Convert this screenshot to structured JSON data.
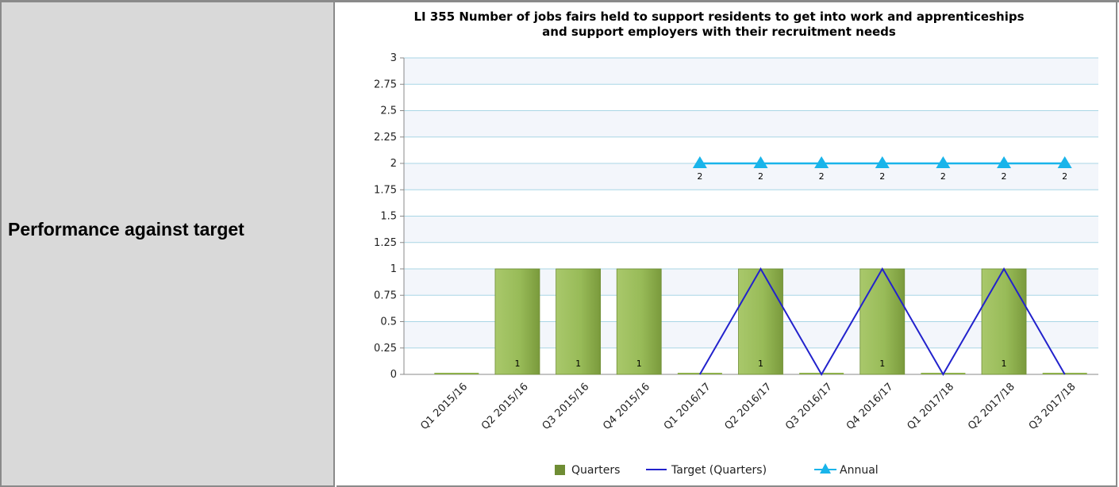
{
  "row_label": "Performance against target",
  "chart_data": {
    "type": "bar",
    "title_line1": "LI 355 Number of jobs fairs held to support residents to get into work and apprenticeships",
    "title_line2": "and support employers with their recruitment needs",
    "categories": [
      "Q1 2015/16",
      "Q2 2015/16",
      "Q3 2015/16",
      "Q4 2015/16",
      "Q1 2016/17",
      "Q2 2016/17",
      "Q3 2016/17",
      "Q4 2016/17",
      "Q1 2017/18",
      "Q2 2017/18",
      "Q3 2017/18"
    ],
    "y_ticks": [
      "0",
      "0.25",
      "0.5",
      "0.75",
      "1",
      "1.25",
      "1.5",
      "1.75",
      "2",
      "2.25",
      "2.5",
      "2.75",
      "3"
    ],
    "ylim": [
      0,
      3
    ],
    "grid": true,
    "series": [
      {
        "name": "Quarters",
        "type": "bar",
        "color": "#8db04a",
        "values": [
          0,
          1,
          1,
          1,
          0,
          1,
          0,
          1,
          0,
          1,
          0
        ],
        "labels": [
          "",
          "1",
          "1",
          "1",
          "",
          "1",
          "",
          "1",
          "",
          "1",
          ""
        ]
      },
      {
        "name": "Target (Quarters)",
        "type": "line",
        "color": "#2222cc",
        "values": [
          null,
          null,
          null,
          null,
          0,
          1,
          0,
          1,
          0,
          1,
          0
        ]
      },
      {
        "name": "Annual",
        "type": "line-marker",
        "color": "#19b4ea",
        "values": [
          null,
          null,
          null,
          null,
          2,
          2,
          2,
          2,
          2,
          2,
          2
        ],
        "labels": [
          "",
          "",
          "",
          "",
          "2",
          "2",
          "2",
          "2",
          "2",
          "2",
          "2"
        ]
      }
    ],
    "legend": [
      "Quarters",
      "Target (Quarters)",
      "Annual"
    ],
    "legend_position": "bottom"
  }
}
